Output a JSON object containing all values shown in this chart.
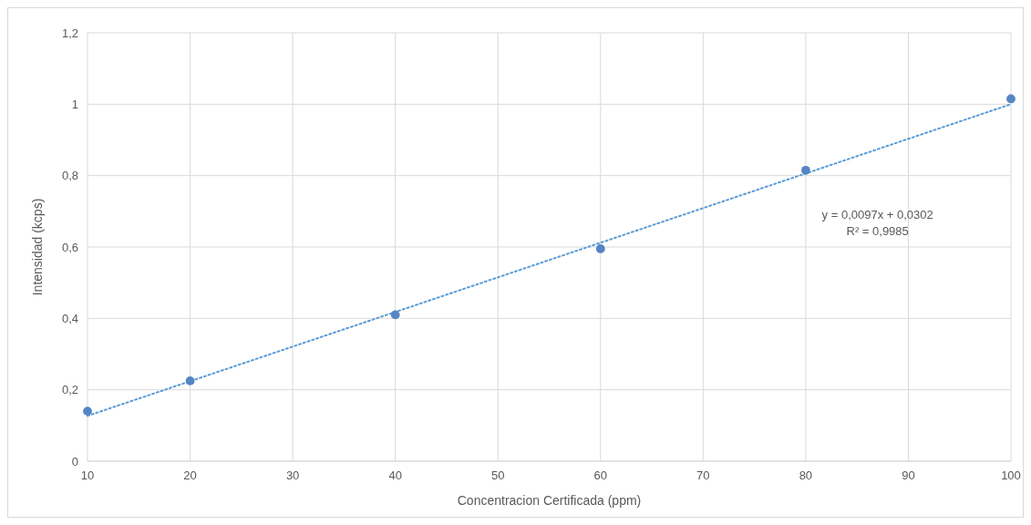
{
  "chart_data": {
    "type": "scatter",
    "xlabel": "Concentracion Certificada (ppm)",
    "ylabel": "Intensidad (kcps)",
    "x": [
      10,
      20,
      40,
      60,
      80,
      100
    ],
    "series": [
      {
        "color": "#5585c5",
        "values": [
          0.14,
          0.225,
          0.41,
          0.595,
          0.815,
          1.015
        ],
        "marker": "circle"
      },
      {
        "type": "line",
        "x": [
          10,
          100
        ],
        "values": [
          0.127,
          1.0
        ],
        "color": "#5b9bd5",
        "line_style": "dotted"
      }
    ],
    "xlim": [
      10,
      100
    ],
    "xticks": [
      10,
      20,
      30,
      40,
      50,
      60,
      70,
      80,
      90,
      100
    ],
    "ylim": [
      0,
      1.2
    ],
    "yticks": [
      0,
      {
        "value": 0.2,
        "label": "0,2"
      },
      {
        "value": 0.4,
        "label": "0,4"
      },
      {
        "value": 0.6,
        "label": "0,6"
      },
      {
        "value": 0.8,
        "label": "0,8"
      },
      1,
      {
        "value": 1.2,
        "label": "1,2"
      }
    ],
    "grid": true,
    "annotations": [
      "y = 0,0097x + 0,0302",
      "R² = 0,9985"
    ]
  }
}
